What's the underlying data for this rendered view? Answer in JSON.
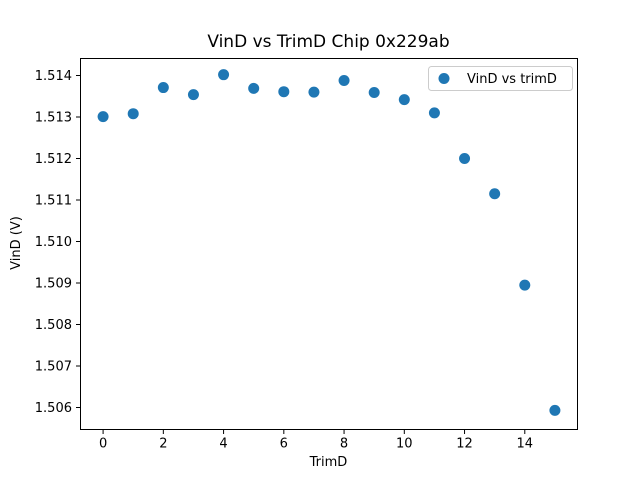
{
  "chart_data": {
    "type": "scatter",
    "title": "VinD vs TrimD Chip 0x229ab",
    "xlabel": "TrimD",
    "ylabel": "VinD (V)",
    "legend": [
      "VinD vs trimD"
    ],
    "legend_position": "upper right",
    "marker_color": "#1f77b4",
    "marker_radius_px": 5.5,
    "grid": false,
    "x": [
      0,
      1,
      2,
      3,
      4,
      5,
      6,
      7,
      8,
      9,
      10,
      11,
      12,
      13,
      14,
      15
    ],
    "y": [
      1.51301,
      1.51308,
      1.51371,
      1.51354,
      1.51402,
      1.51369,
      1.51361,
      1.5136,
      1.51388,
      1.51359,
      1.51342,
      1.5131,
      1.512,
      1.51115,
      1.50895,
      1.50593
    ],
    "xlim": [
      -0.75,
      15.75
    ],
    "ylim": [
      1.50547,
      1.51441
    ],
    "xticks": [
      0,
      2,
      4,
      6,
      8,
      10,
      12,
      14
    ],
    "xtick_labels": [
      "0",
      "2",
      "4",
      "6",
      "8",
      "10",
      "12",
      "14"
    ],
    "yticks": [
      1.506,
      1.507,
      1.508,
      1.509,
      1.51,
      1.511,
      1.512,
      1.513,
      1.514
    ],
    "ytick_labels": [
      "1.506",
      "1.507",
      "1.508",
      "1.509",
      "1.510",
      "1.511",
      "1.512",
      "1.513",
      "1.514"
    ],
    "spine_color": "#000000",
    "legend_border_color": "#cccccc",
    "background_color": "#ffffff"
  }
}
